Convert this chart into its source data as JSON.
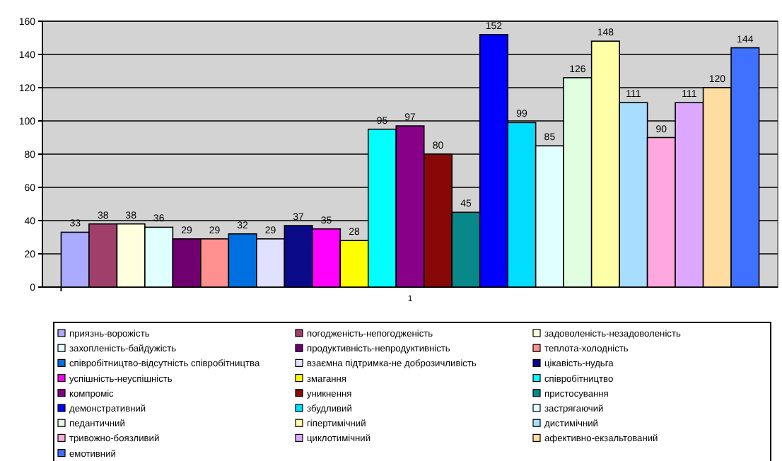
{
  "chart_data": {
    "type": "bar",
    "categories": [
      "1"
    ],
    "ylim": [
      0,
      160
    ],
    "yticks": [
      0,
      20,
      40,
      60,
      80,
      100,
      120,
      140,
      160
    ],
    "grid": "y",
    "legend": "bottom",
    "data_labels": true,
    "series": [
      {
        "name": "приязнь-ворожість",
        "color": "#aaaaff",
        "values": [
          33
        ]
      },
      {
        "name": "погодженість-непогодженість",
        "color": "#a0406a",
        "values": [
          38
        ]
      },
      {
        "name": "задоволеність-незадоволеність",
        "color": "#ffffe0",
        "values": [
          38
        ]
      },
      {
        "name": "захопленість-байдужість",
        "color": "#e0ffff",
        "values": [
          36
        ]
      },
      {
        "name": "продуктивність-непродуктивність",
        "color": "#700070",
        "values": [
          29
        ]
      },
      {
        "name": "теплота-холодність",
        "color": "#ff9090",
        "values": [
          29
        ]
      },
      {
        "name": "співробітництво-відсутність співробітництва",
        "color": "#0070e0",
        "values": [
          32
        ]
      },
      {
        "name": "взаємна підтримка-не доброзичливість",
        "color": "#e0e0ff",
        "values": [
          29
        ]
      },
      {
        "name": "цікавість-нудьга",
        "color": "#0a0a88",
        "values": [
          37
        ]
      },
      {
        "name": "успішність-неуспішність",
        "color": "#ff00ff",
        "values": [
          35
        ]
      },
      {
        "name": "змагання",
        "color": "#ffff00",
        "values": [
          28
        ]
      },
      {
        "name": "співробітництво",
        "color": "#00ffff",
        "values": [
          95
        ]
      },
      {
        "name": "компроміс",
        "color": "#880088",
        "values": [
          97
        ]
      },
      {
        "name": "уникнення",
        "color": "#880808",
        "values": [
          80
        ]
      },
      {
        "name": "пристосування",
        "color": "#088888",
        "values": [
          45
        ]
      },
      {
        "name": "демонстративний",
        "color": "#0000ff",
        "values": [
          152
        ]
      },
      {
        "name": "збудливий",
        "color": "#00ddff",
        "values": [
          99
        ]
      },
      {
        "name": "застрягаючий",
        "color": "#e0ffff",
        "values": [
          85
        ]
      },
      {
        "name": "педантичний",
        "color": "#e0ffe0",
        "values": [
          126
        ]
      },
      {
        "name": "гіпертимічний",
        "color": "#ffffa8",
        "values": [
          148
        ]
      },
      {
        "name": "дистимічний",
        "color": "#a8ddff",
        "values": [
          111
        ]
      },
      {
        "name": "тривожно-боязливий",
        "color": "#ffa8e0",
        "values": [
          90
        ]
      },
      {
        "name": "циклотимічний",
        "color": "#dda8ff",
        "values": [
          111
        ]
      },
      {
        "name": "афективно-екзальтований",
        "color": "#ffdda0",
        "values": [
          120
        ]
      },
      {
        "name": "емотивний",
        "color": "#3f70ff",
        "values": [
          144
        ]
      }
    ]
  }
}
